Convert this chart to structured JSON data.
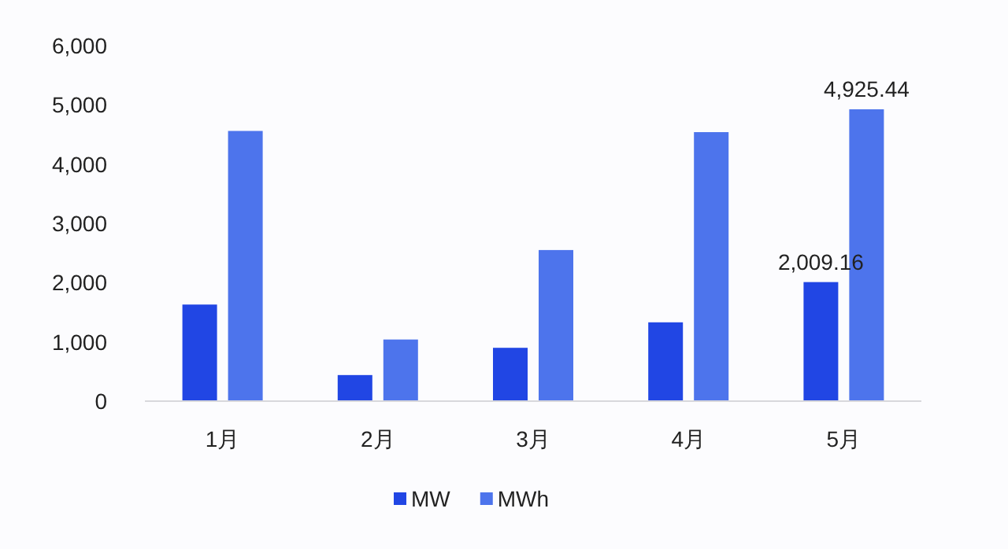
{
  "chart_data": {
    "type": "bar",
    "categories": [
      "1月",
      "2月",
      "3月",
      "4月",
      "5月"
    ],
    "series": [
      {
        "name": "MW",
        "color": "#2146e4",
        "values": [
          1630,
          440,
          900,
          1330,
          2009.16
        ],
        "value_labels": [
          null,
          null,
          null,
          null,
          "2,009.16"
        ]
      },
      {
        "name": "MWh",
        "color": "#4d74ec",
        "values": [
          4560,
          1040,
          2550,
          4540,
          4925.44
        ],
        "value_labels": [
          null,
          null,
          null,
          null,
          "4,925.44"
        ]
      }
    ],
    "ylim": [
      0,
      6000
    ],
    "yticks": [
      {
        "value": 0,
        "label": "0"
      },
      {
        "value": 1000,
        "label": "1,000"
      },
      {
        "value": 2000,
        "label": "2,000"
      },
      {
        "value": 3000,
        "label": "3,000"
      },
      {
        "value": 4000,
        "label": "4,000"
      },
      {
        "value": 5000,
        "label": "5,000"
      },
      {
        "value": 6000,
        "label": "6,000"
      }
    ],
    "grid": false,
    "legend": "bottom"
  }
}
